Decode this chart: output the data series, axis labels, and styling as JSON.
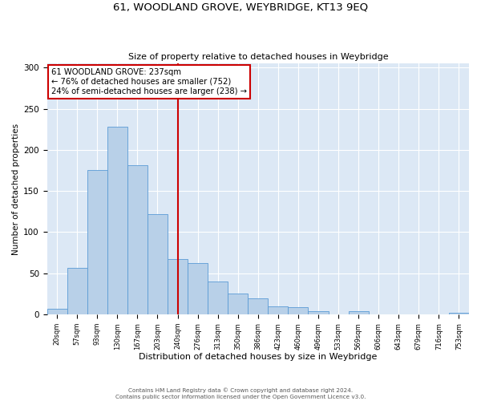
{
  "title": "61, WOODLAND GROVE, WEYBRIDGE, KT13 9EQ",
  "subtitle": "Size of property relative to detached houses in Weybridge",
  "xlabel": "Distribution of detached houses by size in Weybridge",
  "ylabel": "Number of detached properties",
  "bar_labels": [
    "20sqm",
    "57sqm",
    "93sqm",
    "130sqm",
    "167sqm",
    "203sqm",
    "240sqm",
    "276sqm",
    "313sqm",
    "350sqm",
    "386sqm",
    "423sqm",
    "460sqm",
    "496sqm",
    "533sqm",
    "569sqm",
    "606sqm",
    "643sqm",
    "679sqm",
    "716sqm",
    "753sqm"
  ],
  "bar_heights": [
    7,
    57,
    175,
    228,
    181,
    122,
    67,
    62,
    40,
    25,
    20,
    10,
    9,
    4,
    0,
    4,
    0,
    0,
    0,
    0,
    2
  ],
  "bar_color": "#b8d0e8",
  "bar_edge_color": "#5b9bd5",
  "background_color": "#dce8f5",
  "vline_x": 6,
  "vline_color": "#cc0000",
  "annotation_title": "61 WOODLAND GROVE: 237sqm",
  "annotation_line1": "← 76% of detached houses are smaller (752)",
  "annotation_line2": "24% of semi-detached houses are larger (238) →",
  "annotation_box_color": "#cc0000",
  "ylim": [
    0,
    305
  ],
  "yticks": [
    0,
    50,
    100,
    150,
    200,
    250,
    300
  ],
  "footer1": "Contains HM Land Registry data © Crown copyright and database right 2024.",
  "footer2": "Contains public sector information licensed under the Open Government Licence v3.0."
}
